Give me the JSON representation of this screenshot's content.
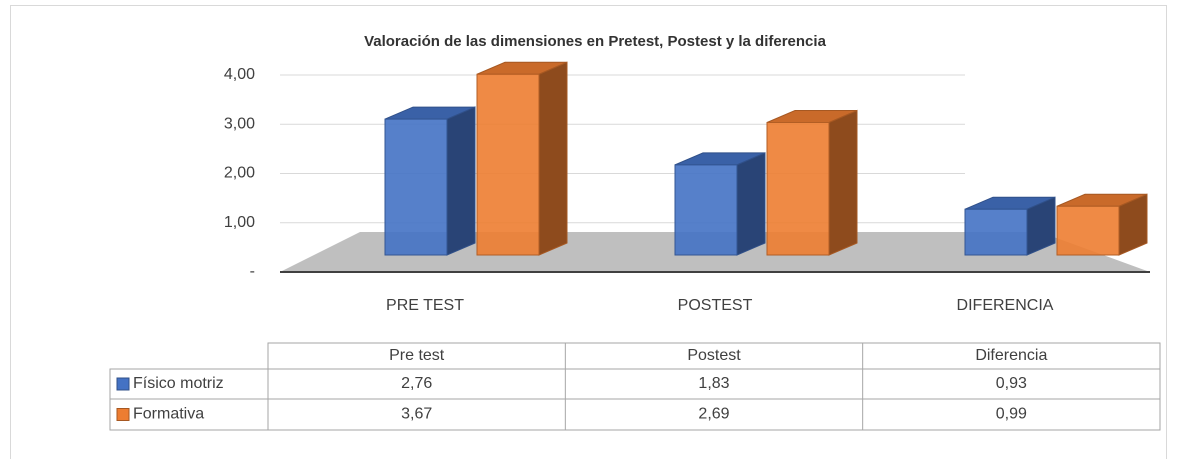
{
  "chart_data": {
    "type": "bar3d",
    "title": "Valoración de las dimensiones en Pretest, Postest y la diferencia",
    "categories": [
      "PRE TEST",
      "POSTEST",
      "DIFERENCIA"
    ],
    "table_columns": [
      "Pre test",
      "Postest",
      "Diferencia"
    ],
    "series": [
      {
        "name": "Físico motriz",
        "color": "#4472c4",
        "values": [
          2.76,
          1.83,
          0.93
        ],
        "value_labels": [
          "2,76",
          "1,83",
          "0,93"
        ]
      },
      {
        "name": "Formativa",
        "color": "#ed7d31",
        "values": [
          3.67,
          2.69,
          0.99
        ],
        "value_labels": [
          "3,67",
          "2,69",
          "0,99"
        ]
      }
    ],
    "ylim": [
      0,
      4
    ],
    "yticks": [
      {
        "value": 0,
        "label": "-"
      },
      {
        "value": 1,
        "label": "1,00"
      },
      {
        "value": 2,
        "label": "2,00"
      },
      {
        "value": 3,
        "label": "3,00"
      },
      {
        "value": 4,
        "label": "4,00"
      }
    ],
    "grid": true,
    "legend": "table"
  }
}
